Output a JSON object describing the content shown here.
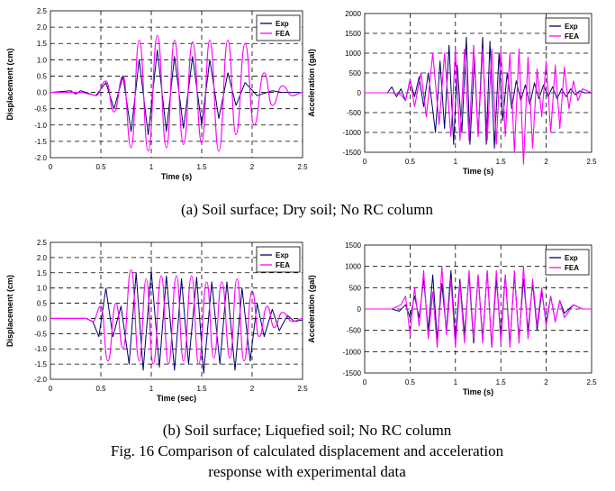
{
  "colors": {
    "exp": "#000066",
    "fea": "#ff00ff",
    "grid": "#000000"
  },
  "captions": {
    "a": "(a) Soil surface; Dry soil; No RC column",
    "b": "(b) Soil surface; Liquefied soil; No RC column",
    "fig_line1": "Fig. 16 Comparison of calculated displacement and acceleration",
    "fig_line2": "response with experimental data"
  },
  "chart_data": [
    {
      "type": "line",
      "panel": "a-displacement",
      "xlabel": "Time (s)",
      "ylabel": "Displacement (cm)",
      "xlim": [
        0,
        2.5
      ],
      "ylim": [
        -2.0,
        2.5
      ],
      "xstep": 0.5,
      "ystep": 0.5,
      "ydec": 1,
      "grid": true,
      "legend": "top-right",
      "series": [
        {
          "name": "Exp",
          "kind": "osc",
          "x": [
            0,
            0.2,
            0.25,
            0.3,
            0.4,
            0.45,
            0.55,
            0.63,
            0.72,
            0.8,
            0.88,
            0.97,
            1.06,
            1.15,
            1.23,
            1.32,
            1.41,
            1.5,
            1.58,
            1.67,
            1.76,
            1.84,
            1.93,
            2.05,
            2.2,
            2.3,
            2.5
          ],
          "y": [
            0,
            0.05,
            -0.05,
            0.05,
            -0.05,
            -0.1,
            0.3,
            -0.5,
            0.5,
            -1.2,
            1.0,
            -1.3,
            1.3,
            -1.2,
            1.1,
            -1.1,
            1.1,
            -1.0,
            1.0,
            -0.8,
            0.6,
            -0.4,
            0.3,
            -0.1,
            0.05,
            0,
            0
          ]
        },
        {
          "name": "FEA",
          "kind": "smooth",
          "x": [
            0,
            0.3,
            0.4,
            0.45,
            0.55,
            0.63,
            0.72,
            0.8,
            0.88,
            0.97,
            1.06,
            1.15,
            1.23,
            1.32,
            1.41,
            1.5,
            1.58,
            1.67,
            1.76,
            1.84,
            1.93,
            2.02,
            2.12,
            2.2,
            2.3,
            2.4,
            2.5
          ],
          "y": [
            0,
            0,
            -0.05,
            -0.1,
            0.35,
            -0.6,
            0.5,
            -1.7,
            1.6,
            -1.8,
            1.75,
            -1.7,
            1.6,
            -1.6,
            1.55,
            -1.55,
            1.6,
            -1.8,
            1.6,
            -1.3,
            1.5,
            -1.0,
            0.6,
            -0.4,
            0.2,
            -0.1,
            0
          ]
        }
      ]
    },
    {
      "type": "line",
      "panel": "a-acceleration",
      "xlabel": "Time (s)",
      "ylabel": "Acceleration (gal)",
      "xlim": [
        0,
        2.5
      ],
      "ylim": [
        -1500,
        2000
      ],
      "xstep": 0.5,
      "ystep": 500,
      "ydec": 0,
      "grid": true,
      "legend": "top-right",
      "series": [
        {
          "name": "Exp",
          "kind": "osc",
          "x": [
            0,
            0.25,
            0.3,
            0.35,
            0.4,
            0.45,
            0.5,
            0.55,
            0.6,
            0.65,
            0.7,
            0.78,
            0.83,
            0.88,
            0.93,
            0.98,
            1.02,
            1.07,
            1.12,
            1.16,
            1.21,
            1.25,
            1.3,
            1.34,
            1.38,
            1.43,
            1.48,
            1.52,
            1.57,
            1.62,
            1.67,
            1.72,
            1.77,
            1.82,
            1.87,
            1.92,
            1.97,
            2.02,
            2.07,
            2.12,
            2.17,
            2.22,
            2.27,
            2.32,
            2.37,
            2.42,
            2.5
          ],
          "y": [
            0,
            0,
            150,
            -100,
            100,
            -200,
            300,
            -100,
            400,
            -350,
            500,
            -1000,
            800,
            -900,
            1200,
            -1300,
            700,
            -1000,
            1400,
            -1300,
            900,
            -1100,
            1400,
            -1300,
            1300,
            -1400,
            1000,
            -700,
            500,
            -400,
            300,
            -200,
            200,
            -300,
            250,
            -150,
            200,
            -100,
            150,
            -150,
            100,
            -100,
            100,
            -50,
            50,
            0,
            0
          ]
        },
        {
          "name": "FEA",
          "kind": "osc",
          "x": [
            0,
            0.3,
            0.4,
            0.45,
            0.5,
            0.55,
            0.62,
            0.68,
            0.75,
            0.82,
            0.88,
            0.95,
            1.0,
            1.05,
            1.1,
            1.15,
            1.2,
            1.25,
            1.3,
            1.35,
            1.4,
            1.45,
            1.5,
            1.55,
            1.6,
            1.65,
            1.7,
            1.75,
            1.8,
            1.85,
            1.9,
            1.95,
            2.0,
            2.05,
            2.1,
            2.15,
            2.2,
            2.25,
            2.3,
            2.35,
            2.4,
            2.5
          ],
          "y": [
            0,
            0,
            -50,
            -200,
            350,
            -350,
            500,
            -600,
            1000,
            -800,
            1000,
            -1100,
            1100,
            -1200,
            1100,
            -1200,
            1200,
            -1100,
            1100,
            -1200,
            1100,
            -1300,
            1100,
            -1100,
            1000,
            -1500,
            1100,
            -1800,
            900,
            -1400,
            600,
            -600,
            800,
            -1000,
            700,
            -900,
            650,
            -400,
            300,
            -200,
            100,
            0
          ]
        }
      ]
    },
    {
      "type": "line",
      "panel": "b-displacement",
      "xlabel": "Time (sec)",
      "ylabel": "Displacement (cm)",
      "xlim": [
        0,
        2.5
      ],
      "ylim": [
        -2.0,
        2.5
      ],
      "xstep": 0.5,
      "ystep": 0.5,
      "ydec": 1,
      "grid": true,
      "legend": "top-right",
      "series": [
        {
          "name": "Exp",
          "kind": "osc",
          "x": [
            0,
            0.35,
            0.42,
            0.48,
            0.55,
            0.62,
            0.7,
            0.78,
            0.85,
            0.92,
            1.0,
            1.08,
            1.15,
            1.23,
            1.3,
            1.37,
            1.45,
            1.52,
            1.6,
            1.68,
            1.75,
            1.83,
            1.9,
            1.98,
            2.05,
            2.12,
            2.2,
            2.27,
            2.35,
            2.42,
            2.5
          ],
          "y": [
            0,
            0,
            -0.1,
            -0.6,
            1.0,
            -0.6,
            0.4,
            -1.5,
            1.5,
            -1.7,
            1.55,
            -1.6,
            1.4,
            -1.7,
            1.3,
            -1.5,
            1.35,
            -1.8,
            1.2,
            -1.5,
            1.2,
            -1.7,
            1.0,
            -1.4,
            0.5,
            -0.6,
            0.3,
            -0.4,
            0.1,
            -0.1,
            -0.05
          ]
        },
        {
          "name": "FEA",
          "kind": "smooth",
          "x": [
            0,
            0.35,
            0.42,
            0.5,
            0.57,
            0.65,
            0.72,
            0.8,
            0.88,
            0.95,
            1.02,
            1.1,
            1.17,
            1.25,
            1.32,
            1.4,
            1.47,
            1.55,
            1.62,
            1.7,
            1.78,
            1.85,
            1.92,
            2.0,
            2.07,
            2.15,
            2.22,
            2.3,
            2.4,
            2.5
          ],
          "y": [
            0,
            0,
            -0.1,
            0.4,
            -1.4,
            0.5,
            -1.0,
            1.6,
            -1.4,
            1.3,
            -1.5,
            1.4,
            -1.5,
            1.4,
            -1.4,
            1.4,
            -1.5,
            1.2,
            -1.3,
            1.2,
            -1.3,
            1.3,
            -1.4,
            0.9,
            -0.6,
            0.4,
            -0.3,
            0.2,
            -0.1,
            0
          ]
        }
      ]
    },
    {
      "type": "line",
      "panel": "b-acceleration",
      "xlabel": "Time (s)",
      "ylabel": "Acceleration (gal)",
      "xlim": [
        0,
        2.5
      ],
      "ylim": [
        -1500,
        1500
      ],
      "xstep": 0.5,
      "ystep": 500,
      "ydec": 0,
      "grid": true,
      "legend": "top-right",
      "series": [
        {
          "name": "Exp",
          "kind": "osc",
          "x": [
            0,
            0.3,
            0.38,
            0.45,
            0.5,
            0.55,
            0.6,
            0.65,
            0.7,
            0.75,
            0.8,
            0.85,
            0.9,
            0.95,
            1.0,
            1.05,
            1.1,
            1.15,
            1.2,
            1.25,
            1.3,
            1.35,
            1.4,
            1.45,
            1.5,
            1.55,
            1.6,
            1.65,
            1.7,
            1.75,
            1.8,
            1.85,
            1.9,
            1.95,
            2.0,
            2.05,
            2.1,
            2.15,
            2.2,
            2.3,
            2.4,
            2.5
          ],
          "y": [
            0,
            0,
            -50,
            100,
            -200,
            300,
            -200,
            700,
            -500,
            800,
            -700,
            600,
            -500,
            900,
            -700,
            700,
            -600,
            800,
            -800,
            800,
            -700,
            900,
            -900,
            700,
            -600,
            800,
            -800,
            800,
            -700,
            700,
            -500,
            600,
            -500,
            400,
            -300,
            300,
            -300,
            200,
            -100,
            100,
            0,
            0
          ]
        },
        {
          "name": "FEA",
          "kind": "osc",
          "x": [
            0,
            0.3,
            0.4,
            0.45,
            0.5,
            0.55,
            0.6,
            0.65,
            0.7,
            0.75,
            0.8,
            0.85,
            0.9,
            0.95,
            1.0,
            1.05,
            1.1,
            1.15,
            1.2,
            1.25,
            1.3,
            1.35,
            1.4,
            1.45,
            1.5,
            1.55,
            1.6,
            1.65,
            1.7,
            1.75,
            1.8,
            1.85,
            1.9,
            1.95,
            2.0,
            2.05,
            2.1,
            2.15,
            2.2,
            2.3,
            2.4,
            2.5
          ],
          "y": [
            0,
            0,
            100,
            300,
            -600,
            500,
            -400,
            900,
            -700,
            400,
            -900,
            1000,
            -600,
            700,
            -900,
            600,
            -800,
            900,
            -700,
            800,
            -800,
            900,
            -900,
            900,
            -800,
            800,
            -900,
            900,
            -800,
            1000,
            -700,
            700,
            -400,
            500,
            -400,
            300,
            -300,
            200,
            -200,
            100,
            0,
            0
          ]
        }
      ]
    }
  ]
}
